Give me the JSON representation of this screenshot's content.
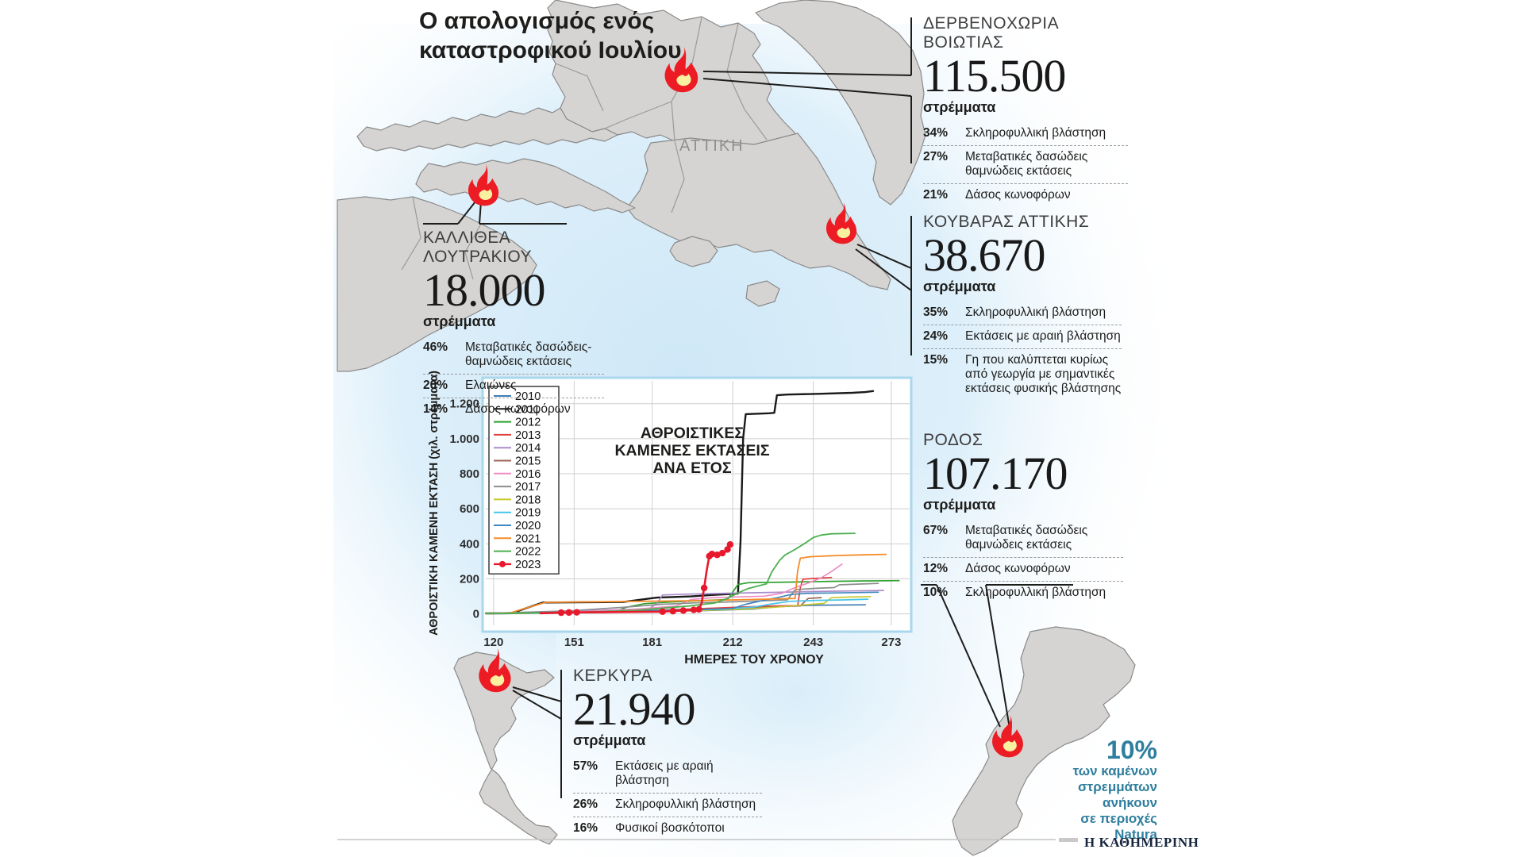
{
  "title": "Ο απολογισμός ενός\nκαταστροφικού Ιουλίου",
  "map": {
    "region_label": "ΑΤΤΙΚΗ"
  },
  "colors": {
    "flame_red": "#ed1c24",
    "flame_core": "#f9f0a0",
    "land": "#d6d4d2",
    "coast": "#8a8a8a",
    "sea": "#cfe8f7",
    "accent_teal": "#2e7e9e",
    "chart_frame": "#a9d7ec"
  },
  "stats": {
    "dervenochoria": {
      "name": "ΔΕΡΒΕΝΟΧΩΡΙΑ ΒΟΙΩΤΙΑΣ",
      "value": "115.500",
      "unit": "στρέμματα",
      "rows": [
        {
          "pct": "34%",
          "label": "Σκληροφυλλική βλάστηση"
        },
        {
          "pct": "27%",
          "label": "Μεταβατικές δασώδεις θαμνώδεις εκτάσεις"
        },
        {
          "pct": "21%",
          "label": "Δάσος κωνοφόρων"
        }
      ]
    },
    "kallithea": {
      "name": "ΚΑΛΛΙΘΕΑ ΛΟΥΤΡΑΚΙΟΥ",
      "value": "18.000",
      "unit": "στρέμματα",
      "rows": [
        {
          "pct": "46%",
          "label": "Μεταβατικές δασώδεις- θαμνώδεις εκτάσεις"
        },
        {
          "pct": "20%",
          "label": "Ελαιώνες"
        },
        {
          "pct": "14%",
          "label": "Δάσος κωνοφόρων"
        }
      ]
    },
    "kouvaras": {
      "name": "ΚΟΥΒΑΡΑΣ ΑΤΤΙΚΗΣ",
      "value": "38.670",
      "unit": "στρέμματα",
      "rows": [
        {
          "pct": "35%",
          "label": "Σκληροφυλλική βλάστηση"
        },
        {
          "pct": "24%",
          "label": "Εκτάσεις με αραιή βλάστηση"
        },
        {
          "pct": "15%",
          "label": "Γη που καλύπτεται κυρίως από γεωργία με σημαντικές εκτάσεις φυσικής βλάστησης"
        }
      ]
    },
    "rodos": {
      "name": "ΡΟΔΟΣ",
      "value": "107.170",
      "unit": "στρέμματα",
      "rows": [
        {
          "pct": "67%",
          "label": "Μεταβατικές δασώδεις θαμνώδεις εκτάσεις"
        },
        {
          "pct": "12%",
          "label": "Δάσος κωνοφόρων"
        },
        {
          "pct": "10%",
          "label": "Σκληροφυλλική βλάστηση"
        }
      ]
    },
    "kerkyra": {
      "name": "ΚΕΡΚΥΡΑ",
      "value": "21.940",
      "unit": "στρέμματα",
      "rows": [
        {
          "pct": "57%",
          "label": "Εκτάσεις με αραιή βλάστηση"
        },
        {
          "pct": "26%",
          "label": "Σκληροφυλλική βλάστηση"
        },
        {
          "pct": "16%",
          "label": "Φυσικοί βοσκότοποι"
        }
      ]
    }
  },
  "natura": {
    "pct": "10%",
    "text": "των καμένων\nστρεμμάτων\nανήκουν\nσε περιοχές\nNatura"
  },
  "credit": "Η ΚΑΘΗΜΕΡΙΝΗ",
  "chart_data": {
    "type": "line",
    "title_lines": [
      "ΑΘΡΟΙΣΤΙΚΕΣ",
      "ΚΑΜΕΝΕΣ ΕΚΤΑΣΕΙΣ",
      "ΑΝΑ ΕΤΟΣ"
    ],
    "xlabel": "ΗΜΕΡΕΣ ΤΟΥ ΧΡΟΝΟΥ",
    "ylabel": "ΑΘΡΟΙΣΤΙΚΗ ΚΑΜΕΝΗ ΕΚΤΑΣΗ (χιλ. στρέμματα)",
    "x_ticks": [
      120,
      151,
      181,
      212,
      243,
      273
    ],
    "y_ticks": [
      0,
      200,
      400,
      600,
      800,
      1000,
      1200
    ],
    "y_tick_labels": [
      "0",
      "200",
      "400",
      "600",
      "800",
      "1.000",
      "1.200"
    ],
    "xlim": [
      117,
      277
    ],
    "ylim": [
      -65,
      1330
    ],
    "grid": true,
    "legend_position": "upper left",
    "series": [
      {
        "name": "2010",
        "color": "#3f7cb4",
        "width": 1.7,
        "points": [
          [
            117,
            3
          ],
          [
            150,
            7
          ],
          [
            181,
            13
          ],
          [
            205,
            20
          ],
          [
            220,
            28
          ],
          [
            232,
            45
          ],
          [
            246,
            50
          ],
          [
            263,
            52
          ]
        ]
      },
      {
        "name": "2011",
        "color": "#1a1a1a",
        "width": 2.4,
        "points": [
          [
            117,
            3
          ],
          [
            128,
            4
          ],
          [
            130,
            20
          ],
          [
            139,
            65
          ],
          [
            170,
            68
          ],
          [
            181,
            90
          ],
          [
            183,
            93
          ],
          [
            196,
            100
          ],
          [
            204,
            108
          ],
          [
            214,
            116
          ],
          [
            215,
            420
          ],
          [
            216,
            1000
          ],
          [
            217,
            1140
          ],
          [
            226,
            1145
          ],
          [
            228,
            1148
          ],
          [
            229,
            1248
          ],
          [
            233,
            1252
          ],
          [
            245,
            1256
          ],
          [
            258,
            1262
          ],
          [
            263,
            1266
          ],
          [
            266,
            1272
          ]
        ]
      },
      {
        "name": "2012",
        "color": "#2ca02c",
        "width": 1.7,
        "points": [
          [
            117,
            2
          ],
          [
            150,
            6
          ],
          [
            166,
            9
          ],
          [
            171,
            38
          ],
          [
            178,
            58
          ],
          [
            188,
            68
          ],
          [
            200,
            76
          ],
          [
            210,
            82
          ],
          [
            214,
            168
          ],
          [
            218,
            178
          ],
          [
            235,
            182
          ],
          [
            250,
            186
          ],
          [
            262,
            188
          ],
          [
            276,
            190
          ]
        ]
      },
      {
        "name": "2013",
        "color": "#e04040",
        "width": 1.7,
        "points": [
          [
            117,
            3
          ],
          [
            150,
            9
          ],
          [
            175,
            16
          ],
          [
            195,
            28
          ],
          [
            210,
            36
          ],
          [
            225,
            44
          ],
          [
            237,
            48
          ],
          [
            238,
            150
          ],
          [
            239,
            198
          ],
          [
            243,
            202
          ],
          [
            250,
            208
          ]
        ]
      },
      {
        "name": "2014",
        "color": "#a98bc9",
        "width": 1.7,
        "points": [
          [
            117,
            3
          ],
          [
            145,
            14
          ],
          [
            165,
            22
          ],
          [
            180,
            30
          ],
          [
            183,
            62
          ],
          [
            185,
            108
          ],
          [
            195,
            113
          ],
          [
            210,
            118
          ],
          [
            228,
            123
          ],
          [
            244,
            128
          ],
          [
            258,
            131
          ],
          [
            270,
            134
          ]
        ]
      },
      {
        "name": "2015",
        "color": "#9c6358",
        "width": 1.7,
        "points": [
          [
            117,
            2
          ],
          [
            150,
            7
          ],
          [
            178,
            14
          ],
          [
            198,
            22
          ],
          [
            212,
            30
          ],
          [
            228,
            40
          ],
          [
            238,
            46
          ],
          [
            241,
            88
          ],
          [
            246,
            93
          ]
        ]
      },
      {
        "name": "2016",
        "color": "#f08bc3",
        "width": 1.7,
        "points": [
          [
            117,
            3
          ],
          [
            148,
            10
          ],
          [
            172,
            24
          ],
          [
            190,
            44
          ],
          [
            196,
            82
          ],
          [
            204,
            92
          ],
          [
            214,
            97
          ],
          [
            224,
            101
          ],
          [
            231,
            118
          ],
          [
            236,
            150
          ],
          [
            241,
            176
          ],
          [
            246,
            206
          ],
          [
            250,
            242
          ],
          [
            254,
            284
          ]
        ]
      },
      {
        "name": "2017",
        "color": "#8c8c8c",
        "width": 1.7,
        "points": [
          [
            117,
            3
          ],
          [
            150,
            18
          ],
          [
            172,
            40
          ],
          [
            185,
            55
          ],
          [
            198,
            63
          ],
          [
            210,
            68
          ],
          [
            222,
            74
          ],
          [
            233,
            80
          ],
          [
            236,
            138
          ],
          [
            244,
            146
          ],
          [
            251,
            150
          ],
          [
            253,
            166
          ],
          [
            262,
            171
          ],
          [
            268,
            174
          ]
        ]
      },
      {
        "name": "2018",
        "color": "#c8c832",
        "width": 1.7,
        "points": [
          [
            117,
            2
          ],
          [
            150,
            7
          ],
          [
            180,
            13
          ],
          [
            202,
            20
          ],
          [
            216,
            27
          ],
          [
            228,
            38
          ],
          [
            240,
            52
          ],
          [
            247,
            60
          ],
          [
            250,
            92
          ],
          [
            256,
            96
          ],
          [
            265,
            99
          ]
        ]
      },
      {
        "name": "2019",
        "color": "#45c5e8",
        "width": 1.7,
        "points": [
          [
            117,
            2
          ],
          [
            148,
            8
          ],
          [
            170,
            15
          ],
          [
            190,
            21
          ],
          [
            208,
            27
          ],
          [
            220,
            39
          ],
          [
            227,
            57
          ],
          [
            234,
            72
          ],
          [
            244,
            77
          ],
          [
            255,
            80
          ],
          [
            264,
            84
          ]
        ]
      },
      {
        "name": "2020",
        "color": "#3f87c0",
        "width": 1.7,
        "points": [
          [
            117,
            2
          ],
          [
            150,
            9
          ],
          [
            178,
            17
          ],
          [
            198,
            24
          ],
          [
            212,
            31
          ],
          [
            217,
            55
          ],
          [
            224,
            78
          ],
          [
            229,
            92
          ],
          [
            234,
            110
          ],
          [
            240,
            117
          ],
          [
            252,
            120
          ],
          [
            268,
            124
          ]
        ]
      },
      {
        "name": "2021",
        "color": "#f68b28",
        "width": 1.8,
        "points": [
          [
            117,
            2
          ],
          [
            126,
            4
          ],
          [
            129,
            18
          ],
          [
            140,
            66
          ],
          [
            165,
            70
          ],
          [
            185,
            73
          ],
          [
            200,
            76
          ],
          [
            212,
            80
          ],
          [
            224,
            84
          ],
          [
            236,
            88
          ],
          [
            237,
            250
          ],
          [
            238,
            318
          ],
          [
            242,
            327
          ],
          [
            252,
            333
          ],
          [
            262,
            337
          ],
          [
            271,
            340
          ]
        ]
      },
      {
        "name": "2022",
        "color": "#4caf50",
        "width": 1.8,
        "points": [
          [
            117,
            2
          ],
          [
            150,
            8
          ],
          [
            175,
            20
          ],
          [
            195,
            45
          ],
          [
            205,
            62
          ],
          [
            210,
            88
          ],
          [
            214,
            120
          ],
          [
            218,
            145
          ],
          [
            222,
            160
          ],
          [
            225,
            172
          ],
          [
            227,
            240
          ],
          [
            230,
            305
          ],
          [
            232,
            335
          ],
          [
            236,
            368
          ],
          [
            240,
            405
          ],
          [
            243,
            436
          ],
          [
            246,
            450
          ],
          [
            250,
            457
          ],
          [
            259,
            460
          ]
        ]
      },
      {
        "name": "2023",
        "color": "#e8192c",
        "width": 2.6,
        "marker": true,
        "points": [
          [
            138,
            4
          ],
          [
            146,
            7
          ],
          [
            149,
            8
          ],
          [
            152,
            9
          ],
          [
            185,
            13
          ],
          [
            189,
            16
          ],
          [
            193,
            19
          ],
          [
            197,
            23
          ],
          [
            199,
            26
          ],
          [
            200,
            60
          ],
          [
            201,
            148
          ],
          [
            202,
            250
          ],
          [
            203,
            330
          ],
          [
            204,
            342
          ],
          [
            205,
            345
          ],
          [
            206,
            337
          ],
          [
            207,
            341
          ],
          [
            208,
            347
          ],
          [
            209,
            352
          ],
          [
            210,
            368
          ],
          [
            211,
            396
          ]
        ],
        "marker_days": [
          146,
          149,
          152,
          185,
          189,
          193,
          197,
          199,
          201,
          203,
          204,
          206,
          208,
          210,
          211
        ]
      }
    ]
  }
}
